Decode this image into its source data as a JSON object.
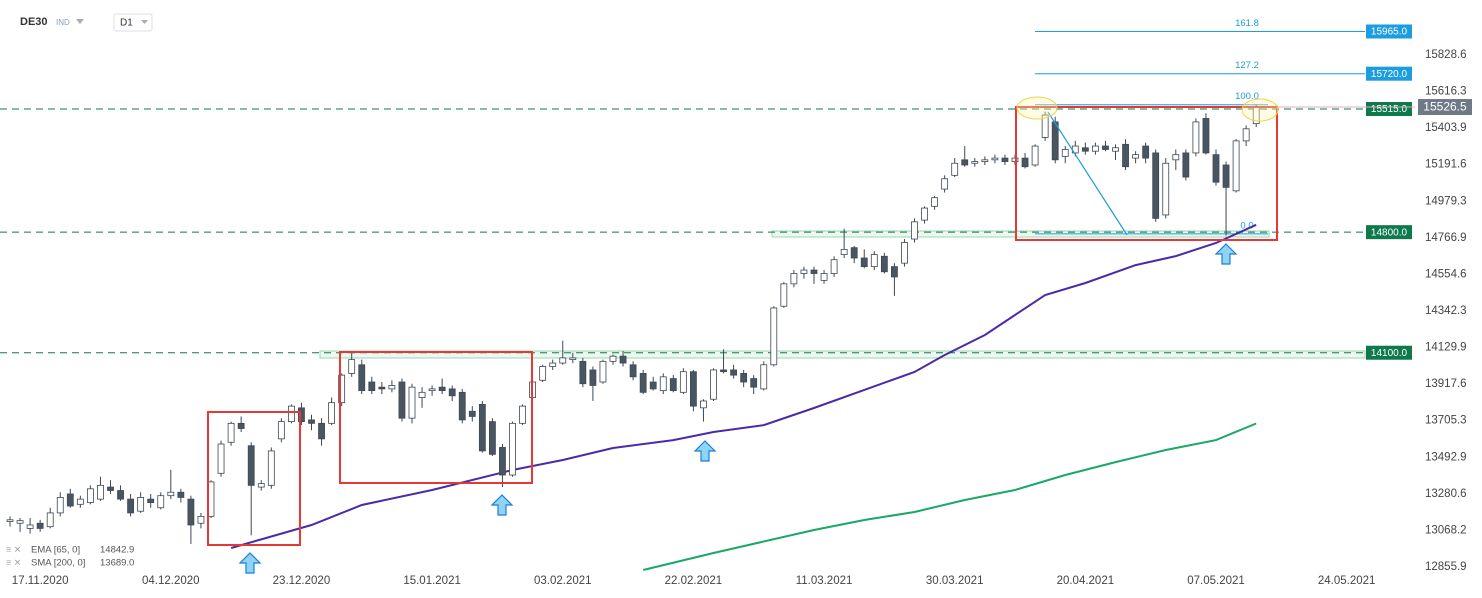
{
  "chart_data": {
    "type": "candlestick",
    "symbol": "DE30",
    "market": "IND",
    "interval": "D1",
    "ylim": [
      12809.5,
      16147.9
    ],
    "yticks": [
      15828.6,
      15616.3,
      15403.9,
      15191.6,
      14979.3,
      14766.9,
      14554.6,
      14342.3,
      14129.9,
      13917.6,
      13705.3,
      13492.9,
      13280.6,
      13068.2,
      12855.9
    ],
    "xlim": [
      0,
      133
    ],
    "xticks": [
      {
        "value": 3,
        "label": "17.11.2020"
      },
      {
        "value": 16,
        "label": "04.12.2020"
      },
      {
        "value": 29,
        "label": "23.12.2020"
      },
      {
        "value": 42,
        "label": "15.01.2021"
      },
      {
        "value": 55,
        "label": "03.02.2021"
      },
      {
        "value": 68,
        "label": "22.02.2021"
      },
      {
        "value": 81,
        "label": "11.03.2021"
      },
      {
        "value": 94,
        "label": "30.03.2021"
      },
      {
        "value": 107,
        "label": "20.04.2021"
      },
      {
        "value": 120,
        "label": "07.05.2021"
      },
      {
        "value": 133,
        "label": "24.05.2021"
      }
    ],
    "up_color": "#ffffff",
    "down_color": "#4a5562",
    "candles": [
      [
        13120,
        13150,
        13090,
        13130
      ],
      [
        13110,
        13140,
        13060,
        13125
      ],
      [
        13080,
        13140,
        13050,
        13100
      ],
      [
        13110,
        13130,
        13060,
        13080
      ],
      [
        13090,
        13200,
        13080,
        13170
      ],
      [
        13170,
        13290,
        13150,
        13260
      ],
      [
        13280,
        13310,
        13200,
        13210
      ],
      [
        13220,
        13270,
        13200,
        13250
      ],
      [
        13230,
        13330,
        13220,
        13310
      ],
      [
        13250,
        13380,
        13240,
        13330
      ],
      [
        13320,
        13360,
        13280,
        13300
      ],
      [
        13300,
        13330,
        13240,
        13250
      ],
      [
        13250,
        13280,
        13150,
        13170
      ],
      [
        13180,
        13290,
        13170,
        13260
      ],
      [
        13250,
        13280,
        13200,
        13230
      ],
      [
        13200,
        13290,
        13190,
        13270
      ],
      [
        13270,
        13420,
        13250,
        13290
      ],
      [
        13290,
        13310,
        13230,
        13260
      ],
      [
        13250,
        13270,
        12990,
        13100
      ],
      [
        13110,
        13170,
        13080,
        13150
      ],
      [
        13150,
        13360,
        13140,
        13350
      ],
      [
        13400,
        13590,
        13380,
        13570
      ],
      [
        13580,
        13700,
        13560,
        13690
      ],
      [
        13690,
        13730,
        13640,
        13660
      ],
      [
        13560,
        13580,
        13040,
        13330
      ],
      [
        13320,
        13360,
        13300,
        13340
      ],
      [
        13330,
        13550,
        13310,
        13530
      ],
      [
        13600,
        13720,
        13580,
        13700
      ],
      [
        13700,
        13800,
        13690,
        13790
      ],
      [
        13780,
        13810,
        13680,
        13700
      ],
      [
        13710,
        13740,
        13650,
        13690
      ],
      [
        13690,
        13720,
        13560,
        13600
      ],
      [
        13690,
        13840,
        13680,
        13810
      ],
      [
        13810,
        13980,
        13790,
        13970
      ],
      [
        13980,
        14110,
        13960,
        14060
      ],
      [
        14030,
        14060,
        13860,
        13880
      ],
      [
        13930,
        13960,
        13860,
        13880
      ],
      [
        13900,
        13930,
        13860,
        13890
      ],
      [
        13890,
        13940,
        13870,
        13910
      ],
      [
        13930,
        13950,
        13700,
        13720
      ],
      [
        13720,
        13920,
        13690,
        13900
      ],
      [
        13840,
        13900,
        13780,
        13870
      ],
      [
        13880,
        13910,
        13850,
        13890
      ],
      [
        13900,
        13950,
        13860,
        13880
      ],
      [
        13890,
        13910,
        13820,
        13850
      ],
      [
        13870,
        13890,
        13690,
        13710
      ],
      [
        13760,
        13790,
        13700,
        13730
      ],
      [
        13800,
        13820,
        13520,
        13530
      ],
      [
        13700,
        13720,
        13500,
        13510
      ],
      [
        13550,
        13570,
        13320,
        13390
      ],
      [
        13390,
        13700,
        13380,
        13690
      ],
      [
        13690,
        13800,
        13680,
        13790
      ],
      [
        13840,
        13940,
        13830,
        13930
      ],
      [
        13940,
        14030,
        13930,
        14020
      ],
      [
        14020,
        14060,
        14000,
        14040
      ],
      [
        14040,
        14170,
        14030,
        14070
      ],
      [
        14060,
        14100,
        14040,
        14070
      ],
      [
        14050,
        14070,
        13900,
        13920
      ],
      [
        14000,
        14020,
        13820,
        13910
      ],
      [
        13930,
        14060,
        13920,
        14050
      ],
      [
        14050,
        14090,
        14030,
        14080
      ],
      [
        14080,
        14110,
        14020,
        14040
      ],
      [
        14030,
        14050,
        13940,
        13960
      ],
      [
        13980,
        14000,
        13860,
        13870
      ],
      [
        13930,
        13960,
        13880,
        13890
      ],
      [
        13880,
        13980,
        13860,
        13960
      ],
      [
        13950,
        13970,
        13870,
        13880
      ],
      [
        13870,
        14010,
        13860,
        13990
      ],
      [
        13990,
        14000,
        13760,
        13790
      ],
      [
        13780,
        13830,
        13700,
        13820
      ],
      [
        13830,
        14010,
        13820,
        14000
      ],
      [
        14000,
        14120,
        13980,
        13990
      ],
      [
        14000,
        14030,
        13950,
        13970
      ],
      [
        13980,
        14000,
        13900,
        13930
      ],
      [
        13950,
        13970,
        13860,
        13900
      ],
      [
        13890,
        14050,
        13880,
        14030
      ],
      [
        14030,
        14370,
        14020,
        14360
      ],
      [
        14370,
        14510,
        14360,
        14500
      ],
      [
        14500,
        14580,
        14480,
        14560
      ],
      [
        14560,
        14600,
        14530,
        14580
      ],
      [
        14580,
        14600,
        14500,
        14560
      ],
      [
        14520,
        14580,
        14500,
        14560
      ],
      [
        14560,
        14660,
        14540,
        14640
      ],
      [
        14670,
        14820,
        14650,
        14700
      ],
      [
        14710,
        14720,
        14620,
        14650
      ],
      [
        14650,
        14700,
        14590,
        14600
      ],
      [
        14600,
        14690,
        14580,
        14670
      ],
      [
        14660,
        14680,
        14560,
        14570
      ],
      [
        14600,
        14620,
        14430,
        14540
      ],
      [
        14620,
        14760,
        14600,
        14740
      ],
      [
        14760,
        14880,
        14740,
        14860
      ],
      [
        14870,
        14950,
        14850,
        14940
      ],
      [
        14950,
        15010,
        14930,
        15000
      ],
      [
        15050,
        15130,
        15030,
        15110
      ],
      [
        15130,
        15230,
        15120,
        15200
      ],
      [
        15220,
        15300,
        15180,
        15190
      ],
      [
        15200,
        15230,
        15180,
        15210
      ],
      [
        15210,
        15240,
        15190,
        15220
      ],
      [
        15220,
        15250,
        15200,
        15230
      ],
      [
        15230,
        15250,
        15190,
        15210
      ],
      [
        15210,
        15250,
        15190,
        15230
      ],
      [
        15230,
        15260,
        15170,
        15180
      ],
      [
        15190,
        15310,
        15180,
        15300
      ],
      [
        15350,
        15500,
        15330,
        15480
      ],
      [
        15440,
        15470,
        15200,
        15220
      ],
      [
        15240,
        15300,
        15200,
        15280
      ],
      [
        15260,
        15330,
        15240,
        15300
      ],
      [
        15290,
        15320,
        15250,
        15270
      ],
      [
        15270,
        15320,
        15250,
        15300
      ],
      [
        15300,
        15330,
        15270,
        15280
      ],
      [
        15270,
        15310,
        15220,
        15290
      ],
      [
        15310,
        15340,
        15160,
        15180
      ],
      [
        15230,
        15270,
        15200,
        15250
      ],
      [
        15300,
        15320,
        15200,
        15230
      ],
      [
        15260,
        15280,
        14860,
        14880
      ],
      [
        14900,
        15230,
        14880,
        15200
      ],
      [
        15220,
        15280,
        15160,
        15250
      ],
      [
        15260,
        15280,
        15100,
        15120
      ],
      [
        15260,
        15460,
        15240,
        15440
      ],
      [
        15460,
        15490,
        15250,
        15260
      ],
      [
        15250,
        15280,
        15070,
        15090
      ],
      [
        15190,
        15210,
        14780,
        15060
      ],
      [
        15040,
        15340,
        15030,
        15330
      ],
      [
        15330,
        15420,
        15300,
        15400
      ],
      [
        15430,
        15540,
        15410,
        15526.5
      ]
    ],
    "series": [
      {
        "name": "EMA [65, 0]",
        "color": "#4b2aa8",
        "last": 14842.9,
        "x": [
          22,
          30,
          35,
          42,
          50,
          55,
          60,
          66,
          70,
          75,
          80,
          85,
          90,
          93,
          97,
          100,
          103,
          107,
          112,
          116,
          120,
          124
        ],
        "values": [
          12966,
          13100,
          13216,
          13303,
          13419,
          13477,
          13547,
          13593,
          13640,
          13680,
          13779,
          13884,
          13988,
          14087,
          14203,
          14319,
          14435,
          14505,
          14609,
          14661,
          14737,
          14842.9
        ]
      },
      {
        "name": "SMA [200, 0]",
        "color": "#19a865",
        "last": {
          "value": 13689,
          "label": "13689.0"
        },
        "x": [
          63,
          70,
          80,
          85,
          90,
          95,
          100,
          105,
          110,
          115,
          120,
          124
        ],
        "values": [
          12838.5,
          12937,
          13071,
          13129,
          13175,
          13245,
          13303,
          13390,
          13465,
          13535,
          13593,
          13689
        ]
      }
    ],
    "levels": [
      {
        "value": 15515,
        "label": "15515.0"
      },
      {
        "value": 14800,
        "label": "14800.0"
      },
      {
        "value": 14100,
        "label": "14100.0"
      }
    ],
    "level_color": "#0e7a4c",
    "fibonacci": [
      {
        "level": "161.8",
        "value": 15965,
        "label": "15965.0"
      },
      {
        "level": "127.2",
        "value": 15720,
        "label": "15720.0"
      },
      {
        "level": "100.0",
        "value": 15540
      },
      {
        "level": "0.0",
        "value": 14790
      }
    ],
    "fib_color": "#1b9de0",
    "current_price": 15526.5
  }
}
